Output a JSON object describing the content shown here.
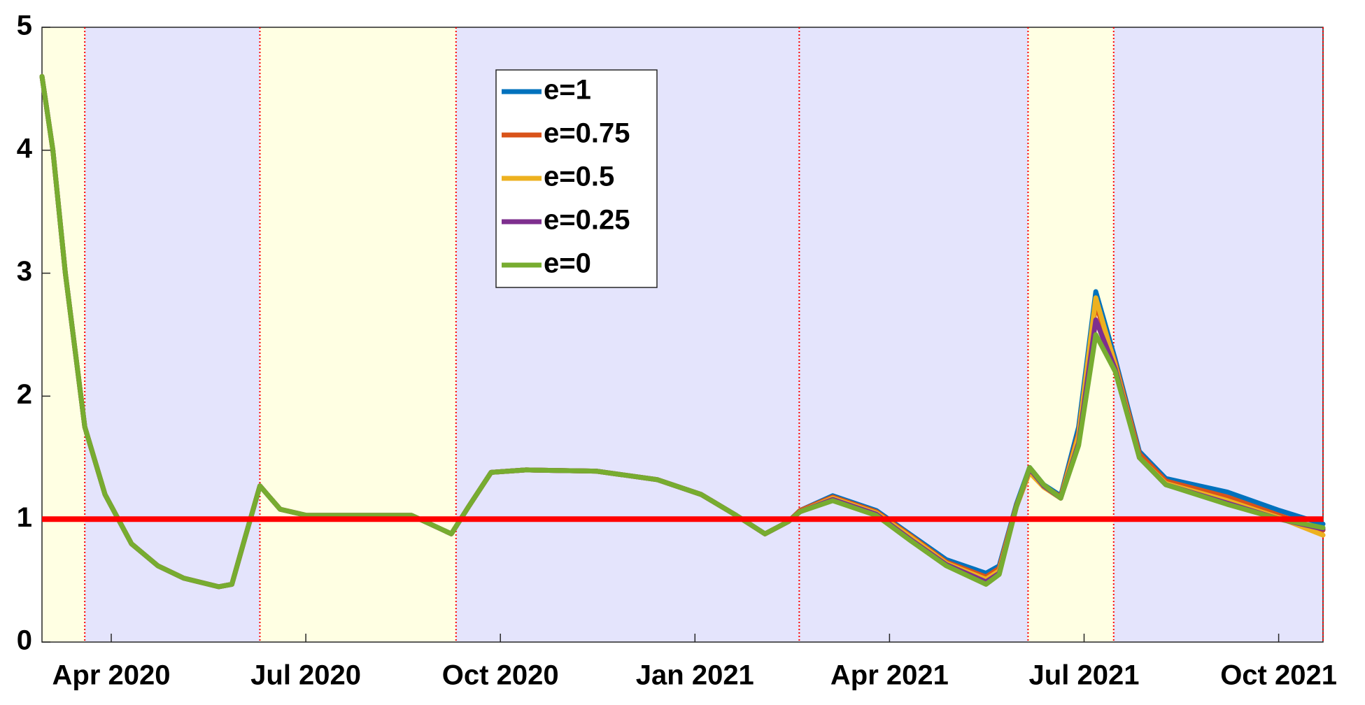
{
  "chart_data": {
    "type": "line",
    "x": [
      2020.161,
      2020.175,
      2020.191,
      2020.216,
      2020.242,
      2020.276,
      2020.31,
      2020.343,
      2020.388,
      2020.405,
      2020.422,
      2020.441,
      2020.467,
      2020.501,
      2020.58,
      2020.636,
      2020.67,
      2020.687,
      2020.709,
      2020.738,
      2020.783,
      2020.873,
      2020.952,
      2021.008,
      2021.053,
      2021.09,
      2021.12,
      2021.135,
      2021.177,
      2021.233,
      2021.278,
      2021.323,
      2021.374,
      2021.391,
      2021.413,
      2021.43,
      2021.448,
      2021.47,
      2021.493,
      2021.515,
      2021.54,
      2021.571,
      2021.605,
      2021.684,
      2021.751,
      2021.807
    ],
    "series": [
      {
        "name": "e=1",
        "color": "#0072bd",
        "values": [
          4.6,
          4.0,
          3.0,
          1.75,
          1.2,
          0.8,
          0.62,
          0.52,
          0.45,
          0.47,
          0.85,
          1.27,
          1.08,
          1.03,
          1.03,
          1.03,
          0.93,
          0.88,
          1.1,
          1.38,
          1.4,
          1.39,
          1.32,
          1.2,
          1.03,
          0.88,
          0.98,
          1.07,
          1.19,
          1.07,
          0.87,
          0.67,
          0.56,
          0.62,
          1.12,
          1.42,
          1.28,
          1.19,
          1.75,
          2.85,
          2.3,
          1.55,
          1.33,
          1.22,
          1.07,
          0.96
        ]
      },
      {
        "name": "e=0.75",
        "color": "#d95319",
        "values": [
          4.6,
          4.0,
          3.0,
          1.75,
          1.2,
          0.8,
          0.62,
          0.52,
          0.45,
          0.47,
          0.85,
          1.27,
          1.08,
          1.03,
          1.03,
          1.03,
          0.93,
          0.88,
          1.1,
          1.38,
          1.4,
          1.39,
          1.32,
          1.2,
          1.03,
          0.88,
          0.98,
          1.07,
          1.18,
          1.06,
          0.86,
          0.65,
          0.53,
          0.6,
          1.11,
          1.4,
          1.27,
          1.18,
          1.7,
          2.75,
          2.27,
          1.53,
          1.31,
          1.18,
          1.03,
          0.91
        ]
      },
      {
        "name": "e=0.5",
        "color": "#edb120",
        "values": [
          4.6,
          4.0,
          3.0,
          1.75,
          1.2,
          0.8,
          0.62,
          0.52,
          0.45,
          0.47,
          0.85,
          1.27,
          1.08,
          1.03,
          1.03,
          1.03,
          0.93,
          0.88,
          1.1,
          1.38,
          1.4,
          1.39,
          1.32,
          1.2,
          1.03,
          0.88,
          0.98,
          1.06,
          1.17,
          1.05,
          0.85,
          0.64,
          0.51,
          0.58,
          1.1,
          1.38,
          1.26,
          1.17,
          1.68,
          2.8,
          2.25,
          1.5,
          1.29,
          1.15,
          1.01,
          0.87
        ]
      },
      {
        "name": "e=0.25",
        "color": "#7e2f8e",
        "values": [
          4.6,
          4.0,
          3.0,
          1.75,
          1.2,
          0.8,
          0.62,
          0.52,
          0.45,
          0.47,
          0.85,
          1.27,
          1.08,
          1.03,
          1.03,
          1.03,
          0.93,
          0.88,
          1.1,
          1.38,
          1.4,
          1.39,
          1.32,
          1.2,
          1.03,
          0.88,
          0.98,
          1.06,
          1.16,
          1.04,
          0.83,
          0.63,
          0.49,
          0.56,
          1.1,
          1.41,
          1.27,
          1.17,
          1.62,
          2.62,
          2.22,
          1.5,
          1.28,
          1.13,
          1.0,
          0.92
        ]
      },
      {
        "name": "e=0",
        "color": "#77ac30",
        "values": [
          4.6,
          4.0,
          3.0,
          1.75,
          1.2,
          0.8,
          0.62,
          0.52,
          0.45,
          0.47,
          0.85,
          1.27,
          1.08,
          1.03,
          1.03,
          1.03,
          0.93,
          0.88,
          1.1,
          1.38,
          1.4,
          1.39,
          1.32,
          1.2,
          1.03,
          0.88,
          0.98,
          1.06,
          1.15,
          1.03,
          0.82,
          0.62,
          0.47,
          0.55,
          1.1,
          1.42,
          1.28,
          1.17,
          1.6,
          2.5,
          2.2,
          1.5,
          1.28,
          1.12,
          1.0,
          0.93
        ]
      }
    ],
    "xlim": [
      2020.161,
      2021.807
    ],
    "xticks": [
      {
        "value": 2020.25,
        "label": "Apr 2020"
      },
      {
        "value": 2020.5,
        "label": "Jul 2020"
      },
      {
        "value": 2020.75,
        "label": "Oct 2020"
      },
      {
        "value": 2021.0,
        "label": "Jan 2021"
      },
      {
        "value": 2021.25,
        "label": "Apr 2021"
      },
      {
        "value": 2021.5,
        "label": "Jul 2021"
      },
      {
        "value": 2021.75,
        "label": "Oct 2021"
      }
    ],
    "ylim": [
      0,
      5
    ],
    "yticks": [
      0,
      1,
      2,
      3,
      4,
      5
    ],
    "shading": [
      {
        "x0": 2020.161,
        "x1": 2020.216,
        "color": "#ffffe3"
      },
      {
        "x0": 2020.216,
        "x1": 2020.441,
        "color": "#e4e4fc"
      },
      {
        "x0": 2020.441,
        "x1": 2020.693,
        "color": "#ffffe3"
      },
      {
        "x0": 2020.693,
        "x1": 2021.428,
        "color": "#e4e4fc"
      },
      {
        "x0": 2021.428,
        "x1": 2021.538,
        "color": "#ffffe3"
      },
      {
        "x0": 2021.538,
        "x1": 2021.807,
        "color": "#e4e4fc"
      }
    ],
    "vlines": [
      2020.216,
      2020.441,
      2020.693,
      2021.134,
      2021.428,
      2021.538,
      2021.807
    ],
    "vline_color": "#ff0000",
    "hline": {
      "value": 1,
      "color": "#ff0000"
    },
    "legend": "north"
  }
}
